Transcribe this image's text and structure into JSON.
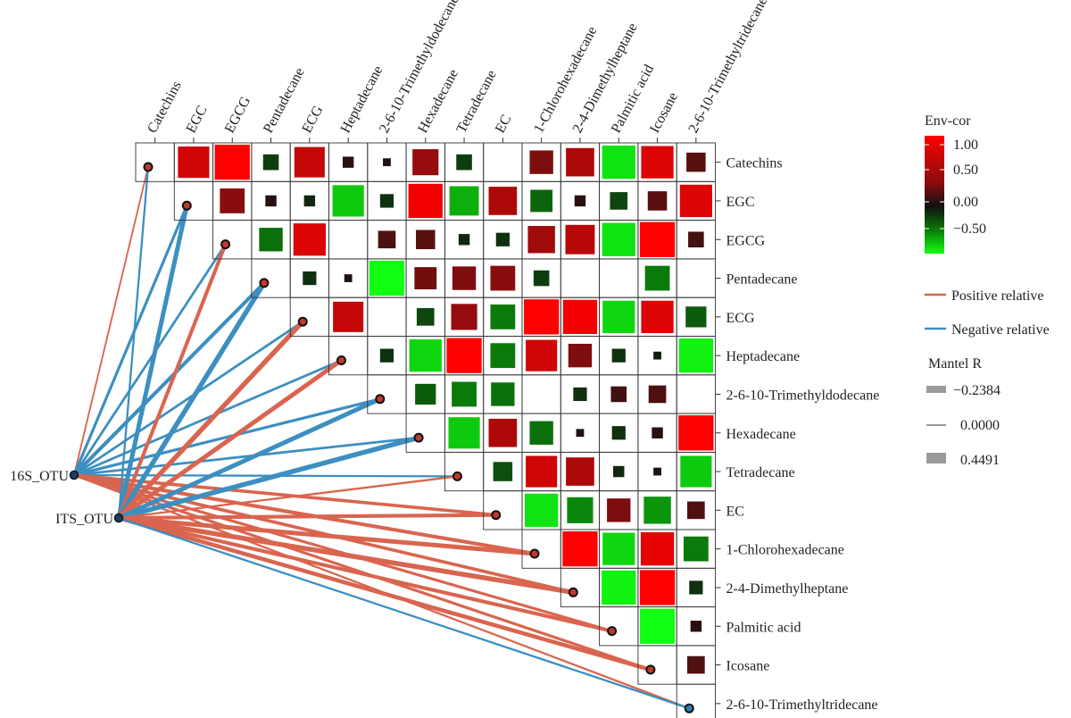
{
  "chart_data": {
    "type": "heatmap",
    "variables": [
      "Catechins",
      "EGC",
      "EGCG",
      "Pentadecane",
      "ECG",
      "Heptadecane",
      "2-6-10-Trimethyldodecane",
      "Hexadecane",
      "Tetradecane",
      "EC",
      "1-Chlorohexadecane",
      "2-4-Dimethylheptane",
      "Palmitic acid",
      "Icosane",
      "2-6-10-Trimethyltridecane"
    ],
    "row_labels": [
      "Catechins",
      "EGC",
      "EGCG",
      "Pentadecane",
      "ECG",
      "Heptadecane",
      "2-6-10-Trimethyldodecane",
      "Hexadecane",
      "Tetradecane",
      "EC",
      "1-Chlorohexadecane",
      "2-4-Dimethylheptane",
      "Palmitic acid",
      "Icosane",
      "2-6-10-Trimethyltridecane"
    ],
    "col_labels": [
      "Catechins",
      "EGC",
      "EGCG",
      "Pentadecane",
      "ECG",
      "Heptadecane",
      "2-6-10-Trimethyldodecane",
      "Hexadecane",
      "Tetradecane",
      "EC",
      "1-Chlorohexadecane",
      "2-4-Dimethylheptane",
      "Palmitic acid",
      "Icosane",
      "2-6-10-Trimethyltridecane"
    ],
    "correlation_matrix": [
      [
        null,
        0.8,
        1.0,
        -0.2,
        0.75,
        0.1,
        0.05,
        0.55,
        -0.2,
        0.0,
        0.45,
        0.65,
        -0.9,
        0.85,
        0.3
      ],
      [
        null,
        null,
        0.5,
        0.1,
        -0.1,
        -0.8,
        -0.15,
        0.95,
        -0.7,
        0.65,
        -0.4,
        0.1,
        -0.25,
        0.3,
        0.85
      ],
      [
        null,
        null,
        null,
        -0.45,
        0.85,
        0.0,
        0.25,
        0.3,
        -0.1,
        -0.15,
        0.6,
        0.7,
        -0.9,
        1.0,
        0.2
      ],
      [
        null,
        null,
        null,
        null,
        -0.15,
        0.05,
        -1.0,
        0.4,
        0.45,
        0.5,
        -0.2,
        0.0,
        0.0,
        -0.5,
        0.0
      ],
      [
        null,
        null,
        null,
        null,
        null,
        0.75,
        0.0,
        -0.25,
        0.55,
        -0.5,
        1.0,
        0.95,
        -0.85,
        0.85,
        -0.35
      ],
      [
        null,
        null,
        null,
        null,
        null,
        null,
        -0.15,
        -0.85,
        1.0,
        -0.5,
        0.8,
        0.45,
        -0.15,
        -0.05,
        -0.95
      ],
      [
        null,
        null,
        null,
        null,
        null,
        null,
        null,
        -0.35,
        -0.5,
        -0.45,
        0.0,
        -0.15,
        0.2,
        0.25,
        0.0
      ],
      [
        null,
        null,
        null,
        null,
        null,
        null,
        null,
        null,
        -0.8,
        0.65,
        -0.45,
        0.05,
        -0.15,
        0.1,
        1.0
      ],
      [
        null,
        null,
        null,
        null,
        null,
        null,
        null,
        null,
        null,
        -0.3,
        0.8,
        0.65,
        -0.1,
        0.05,
        -0.8
      ],
      [
        null,
        null,
        null,
        null,
        null,
        null,
        null,
        null,
        null,
        null,
        -0.9,
        -0.55,
        0.45,
        -0.6,
        0.25
      ],
      [
        null,
        null,
        null,
        null,
        null,
        null,
        null,
        null,
        null,
        null,
        null,
        1.0,
        -0.85,
        0.9,
        -0.5
      ],
      [
        null,
        null,
        null,
        null,
        null,
        null,
        null,
        null,
        null,
        null,
        null,
        null,
        -0.95,
        1.0,
        -0.15
      ],
      [
        null,
        null,
        null,
        null,
        null,
        null,
        null,
        null,
        null,
        null,
        null,
        null,
        null,
        -1.0,
        0.1
      ],
      [
        null,
        null,
        null,
        null,
        null,
        null,
        null,
        null,
        null,
        null,
        null,
        null,
        null,
        null,
        0.25
      ],
      [
        null,
        null,
        null,
        null,
        null,
        null,
        null,
        null,
        null,
        null,
        null,
        null,
        null,
        null,
        null
      ]
    ],
    "mantel_sources": [
      "16S_OTU",
      "ITS_OTU"
    ],
    "mantel_links": [
      {
        "from": "16S_OTU",
        "to": "Catechins",
        "type": "positive",
        "r": 0.05
      },
      {
        "from": "16S_OTU",
        "to": "EGC",
        "type": "negative",
        "r": 0.2
      },
      {
        "from": "16S_OTU",
        "to": "EGCG",
        "type": "negative",
        "r": 0.15
      },
      {
        "from": "16S_OTU",
        "to": "Pentadecane",
        "type": "negative",
        "r": 0.3
      },
      {
        "from": "16S_OTU",
        "to": "ECG",
        "type": "negative",
        "r": 0.15
      },
      {
        "from": "16S_OTU",
        "to": "Heptadecane",
        "type": "negative",
        "r": 0.15
      },
      {
        "from": "16S_OTU",
        "to": "2-6-10-Trimethyldodecane",
        "type": "negative",
        "r": 0.2
      },
      {
        "from": "16S_OTU",
        "to": "Hexadecane",
        "type": "negative",
        "r": 0.15
      },
      {
        "from": "16S_OTU",
        "to": "Tetradecane",
        "type": "negative",
        "r": 0.1
      },
      {
        "from": "16S_OTU",
        "to": "EC",
        "type": "positive",
        "r": 0.25
      },
      {
        "from": "16S_OTU",
        "to": "1-Chlorohexadecane",
        "type": "positive",
        "r": 0.3
      },
      {
        "from": "16S_OTU",
        "to": "2-4-Dimethylheptane",
        "type": "positive",
        "r": 0.25
      },
      {
        "from": "16S_OTU",
        "to": "Palmitic acid",
        "type": "positive",
        "r": 0.2
      },
      {
        "from": "16S_OTU",
        "to": "Icosane",
        "type": "positive",
        "r": 0.2
      },
      {
        "from": "16S_OTU",
        "to": "2-6-10-Trimethyltridecane",
        "type": "positive",
        "r": 0.1
      },
      {
        "from": "ITS_OTU",
        "to": "Catechins",
        "type": "negative",
        "r": 0.1
      },
      {
        "from": "ITS_OTU",
        "to": "EGC",
        "type": "negative",
        "r": 0.4
      },
      {
        "from": "ITS_OTU",
        "to": "EGCG",
        "type": "positive",
        "r": 0.3
      },
      {
        "from": "ITS_OTU",
        "to": "Pentadecane",
        "type": "negative",
        "r": 0.45
      },
      {
        "from": "ITS_OTU",
        "to": "ECG",
        "type": "positive",
        "r": 0.45
      },
      {
        "from": "ITS_OTU",
        "to": "Heptadecane",
        "type": "positive",
        "r": 0.4
      },
      {
        "from": "ITS_OTU",
        "to": "2-6-10-Trimethyldodecane",
        "type": "negative",
        "r": 0.4
      },
      {
        "from": "ITS_OTU",
        "to": "Hexadecane",
        "type": "negative",
        "r": 0.45
      },
      {
        "from": "ITS_OTU",
        "to": "Tetradecane",
        "type": "positive",
        "r": 0.1
      },
      {
        "from": "ITS_OTU",
        "to": "EC",
        "type": "positive",
        "r": 0.3
      },
      {
        "from": "ITS_OTU",
        "to": "1-Chlorohexadecane",
        "type": "positive",
        "r": 0.4
      },
      {
        "from": "ITS_OTU",
        "to": "2-4-Dimethylheptane",
        "type": "positive",
        "r": 0.45
      },
      {
        "from": "ITS_OTU",
        "to": "Palmitic acid",
        "type": "positive",
        "r": 0.3
      },
      {
        "from": "ITS_OTU",
        "to": "Icosane",
        "type": "positive",
        "r": 0.35
      },
      {
        "from": "ITS_OTU",
        "to": "2-6-10-Trimethyltridecane",
        "type": "negative",
        "r": 0.1
      }
    ],
    "legend": {
      "color_title": "Env-cor",
      "color_ticks": [
        "1.00",
        "0.50",
        "0.00",
        "−0.50"
      ],
      "color_range": [
        -1,
        1
      ],
      "line_entries": [
        {
          "label": "Positive relative",
          "color": "#d9654f"
        },
        {
          "label": "Negative relative",
          "color": "#3c8fc0"
        }
      ],
      "size_title": "Mantel R",
      "size_entries": [
        "−0.2384",
        "0.0000",
        "0.4491"
      ],
      "placement": "right"
    },
    "colors": {
      "positive": "#ff0000",
      "zero": "#222222",
      "negative": "#11ff11",
      "positive_line": "#d9654f",
      "negative_line": "#3c8fc0"
    }
  }
}
